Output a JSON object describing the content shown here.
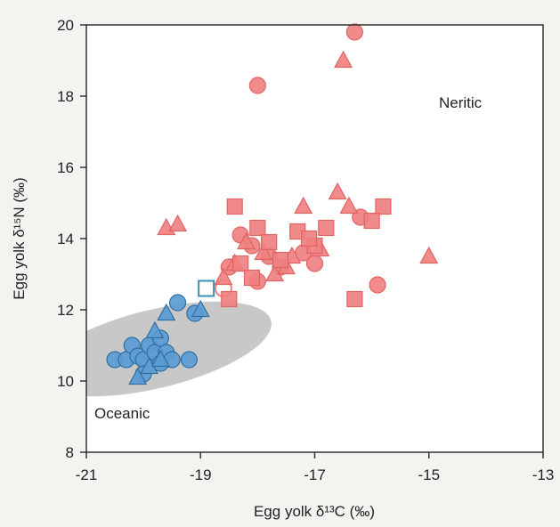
{
  "chart_data": {
    "type": "scatter",
    "title": "",
    "xlabel": "Egg yolk δ¹³C (‰)",
    "ylabel": "Egg yolk δ¹⁵N (‰)",
    "xlim": [
      -21,
      -13
    ],
    "ylim": [
      8,
      20
    ],
    "xticks": [
      "-21",
      "-19",
      "-17",
      "-15",
      "-13"
    ],
    "yticks": [
      "8",
      "10",
      "12",
      "14",
      "16",
      "18",
      "20"
    ],
    "grid": false,
    "legend": "none",
    "region_labels": {
      "oceanic": "Oceanic",
      "neritic": "Neritic"
    },
    "colors": {
      "oceanic": "#5b9bd5",
      "neritic": "#f08080",
      "ellipse": "#c8c8c8",
      "open": "#ffffff"
    },
    "oceanic_ellipse": {
      "center": [
        -19.8,
        10.9
      ],
      "semi_major": 2.2,
      "semi_minor": 1.05,
      "angle_deg": 25
    },
    "series": [
      {
        "group": "oceanic",
        "marker": "circle",
        "points": [
          [
            -20.5,
            10.6
          ],
          [
            -20.3,
            10.6
          ],
          [
            -20.2,
            11.0
          ],
          [
            -20.1,
            10.7
          ],
          [
            -20.0,
            10.6
          ],
          [
            -19.9,
            11.0
          ],
          [
            -19.8,
            10.8
          ],
          [
            -19.7,
            10.5
          ],
          [
            -20.0,
            10.2
          ],
          [
            -19.7,
            11.2
          ],
          [
            -19.6,
            10.8
          ],
          [
            -19.5,
            10.6
          ],
          [
            -19.4,
            12.2
          ],
          [
            -19.2,
            10.6
          ],
          [
            -19.1,
            11.9
          ]
        ]
      },
      {
        "group": "oceanic",
        "marker": "triangle",
        "points": [
          [
            -20.1,
            10.1
          ],
          [
            -19.9,
            10.4
          ],
          [
            -19.7,
            10.6
          ],
          [
            -19.6,
            11.9
          ],
          [
            -19.8,
            11.4
          ],
          [
            -19.0,
            12.0
          ]
        ]
      },
      {
        "group": "open",
        "marker": "square",
        "points": [
          [
            -18.9,
            12.6
          ]
        ]
      },
      {
        "group": "open",
        "marker": "circle",
        "points": [
          [
            -18.6,
            12.6
          ]
        ]
      },
      {
        "group": "neritic",
        "marker": "circle",
        "points": [
          [
            -16.3,
            19.8
          ],
          [
            -18.0,
            18.3
          ],
          [
            -18.3,
            14.1
          ],
          [
            -18.1,
            13.8
          ],
          [
            -18.0,
            12.8
          ],
          [
            -17.6,
            13.2
          ],
          [
            -17.2,
            13.6
          ],
          [
            -17.0,
            13.3
          ],
          [
            -16.2,
            14.6
          ],
          [
            -15.9,
            12.7
          ],
          [
            -18.5,
            13.2
          ],
          [
            -17.8,
            13.5
          ]
        ]
      },
      {
        "group": "neritic",
        "marker": "triangle",
        "points": [
          [
            -16.5,
            19.0
          ],
          [
            -19.6,
            14.3
          ],
          [
            -19.4,
            14.4
          ],
          [
            -18.4,
            13.3
          ],
          [
            -18.2,
            13.9
          ],
          [
            -17.9,
            13.6
          ],
          [
            -17.7,
            13.0
          ],
          [
            -17.5,
            13.2
          ],
          [
            -17.2,
            14.9
          ],
          [
            -16.9,
            13.7
          ],
          [
            -16.6,
            15.3
          ],
          [
            -16.4,
            14.9
          ],
          [
            -15.0,
            13.5
          ],
          [
            -18.6,
            12.9
          ],
          [
            -17.4,
            13.5
          ]
        ]
      },
      {
        "group": "neritic",
        "marker": "square",
        "points": [
          [
            -18.4,
            14.9
          ],
          [
            -18.0,
            14.3
          ],
          [
            -18.3,
            13.3
          ],
          [
            -17.8,
            13.9
          ],
          [
            -17.6,
            13.4
          ],
          [
            -17.3,
            14.2
          ],
          [
            -17.0,
            13.8
          ],
          [
            -16.8,
            14.3
          ],
          [
            -15.8,
            14.9
          ],
          [
            -16.0,
            14.5
          ],
          [
            -16.3,
            12.3
          ],
          [
            -18.5,
            12.3
          ],
          [
            -17.1,
            14.0
          ],
          [
            -18.1,
            12.9
          ]
        ]
      }
    ]
  }
}
